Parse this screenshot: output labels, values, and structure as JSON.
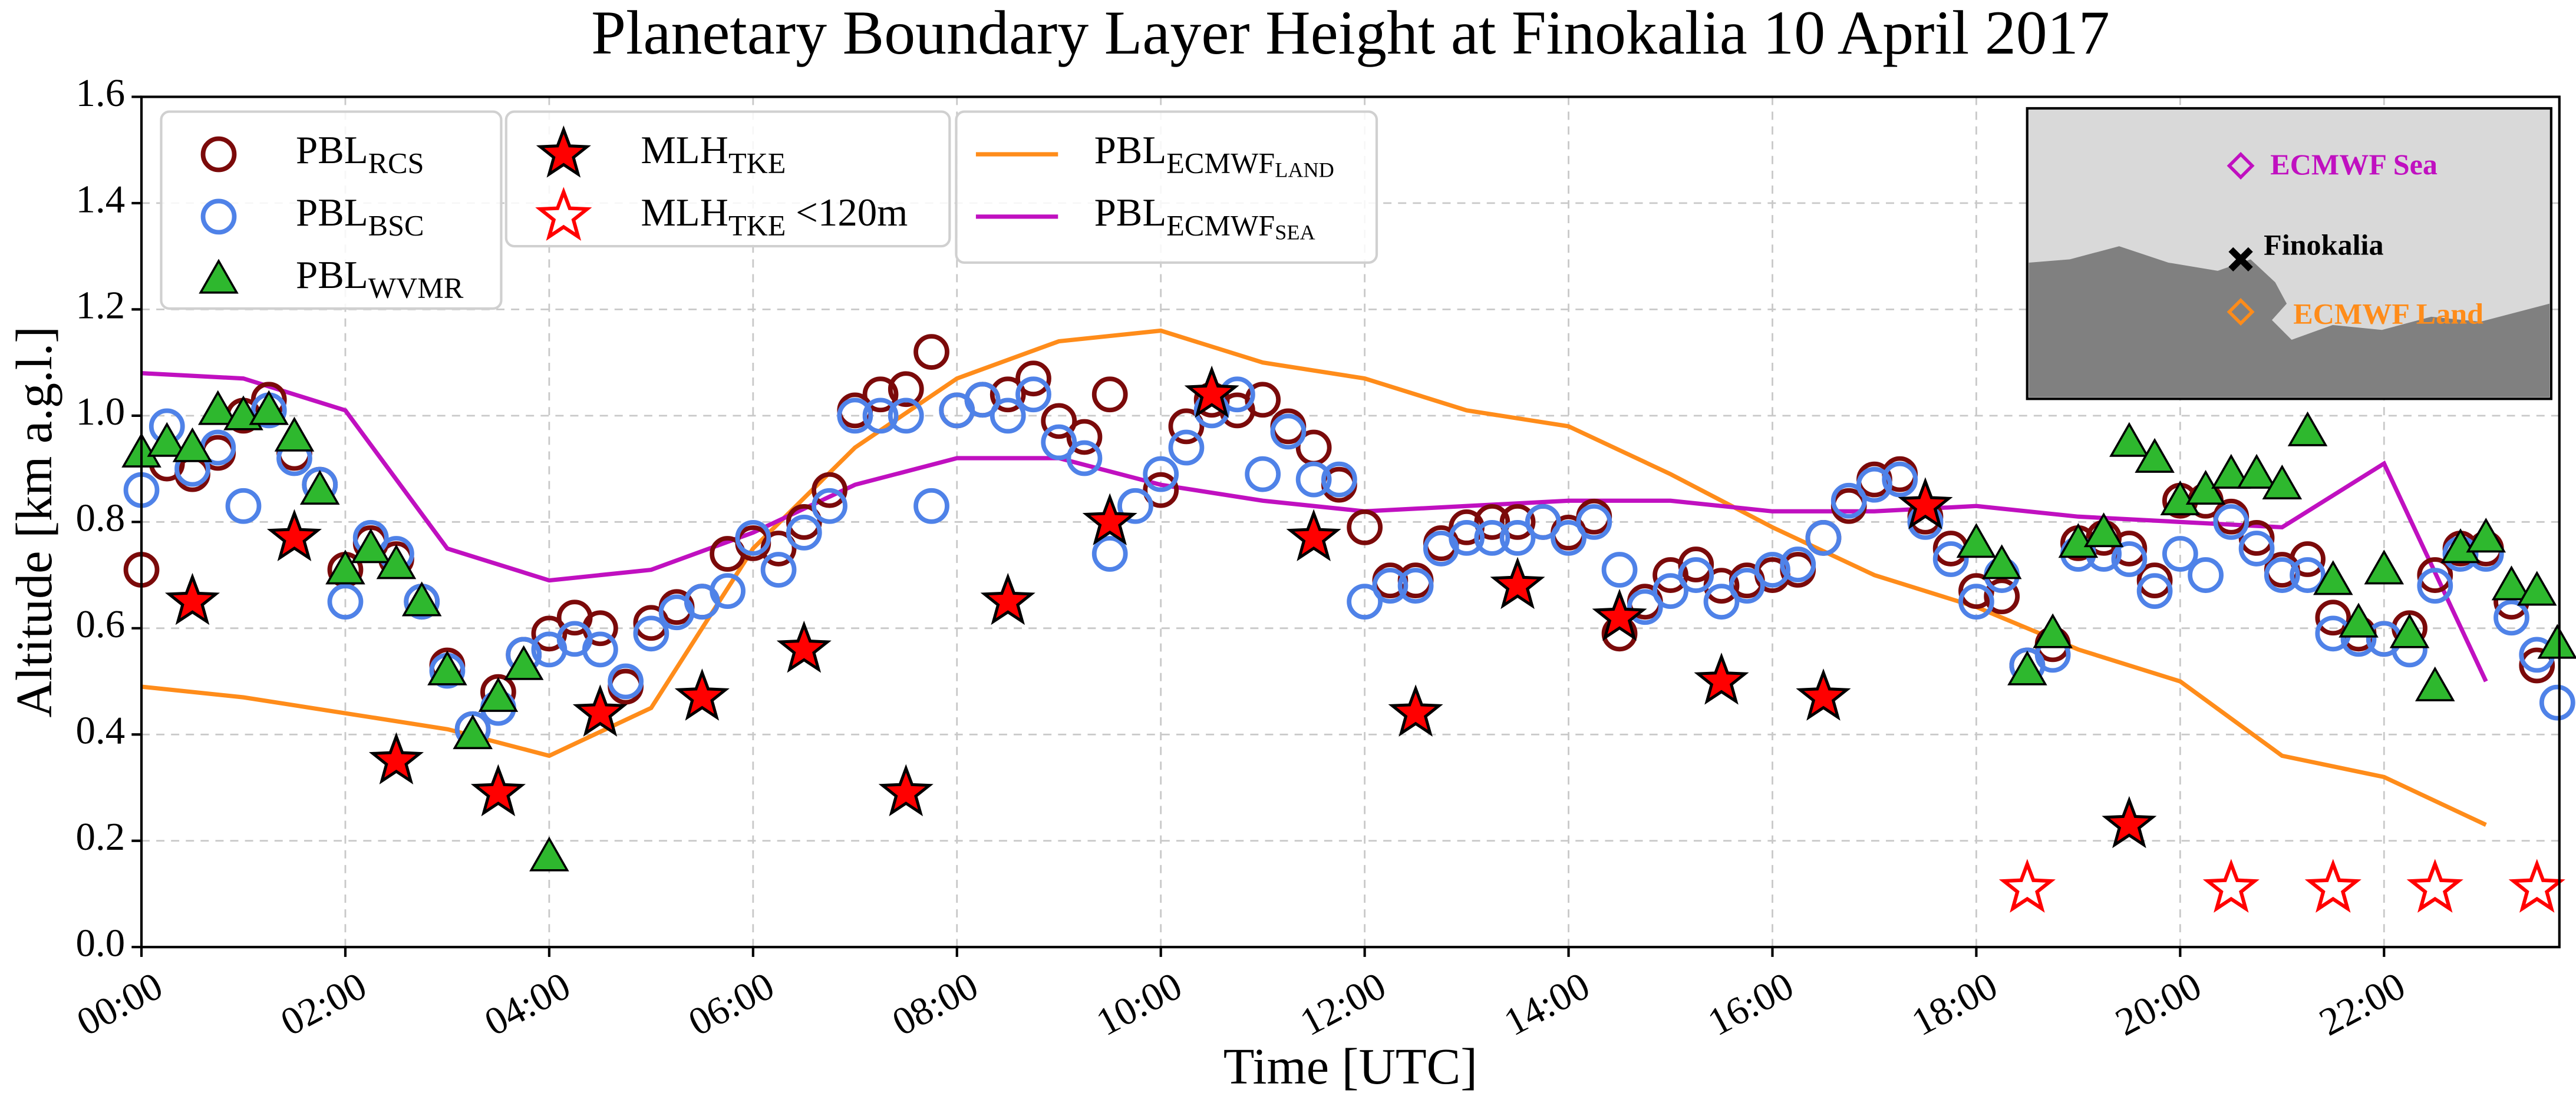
{
  "chart_data": {
    "type": "scatter",
    "title": "Planetary Boundary Layer Height at Finokalia 10 April 2017",
    "x_label": "Time [UTC]",
    "y_label": "Altitude [km a.g.l.]",
    "xlim": [
      0,
      23.72
    ],
    "ylim": [
      0,
      1.6
    ],
    "xticks": [
      {
        "value": 0,
        "label": "00:00"
      },
      {
        "value": 2,
        "label": "02:00"
      },
      {
        "value": 4,
        "label": "04:00"
      },
      {
        "value": 6,
        "label": "06:00"
      },
      {
        "value": 8,
        "label": "08:00"
      },
      {
        "value": 10,
        "label": "10:00"
      },
      {
        "value": 12,
        "label": "12:00"
      },
      {
        "value": 14,
        "label": "14:00"
      },
      {
        "value": 16,
        "label": "16:00"
      },
      {
        "value": 18,
        "label": "18:00"
      },
      {
        "value": 20,
        "label": "20:00"
      },
      {
        "value": 22,
        "label": "22:00"
      }
    ],
    "yticks": [
      {
        "value": 0,
        "label": "0.0"
      },
      0.2,
      0.4,
      0.6,
      0.8,
      {
        "value": 1,
        "label": "1.0"
      },
      1.2,
      1.4,
      1.6
    ],
    "grid": true,
    "series": [
      {
        "name": "PBL",
        "subscript": "RCS",
        "type": "scatter",
        "marker": "circle-open",
        "color": "#7b0a0a",
        "x": [
          0,
          0.25,
          0.5,
          0.75,
          1,
          1.25,
          1.5,
          1.75,
          2,
          2.25,
          2.5,
          2.75,
          3,
          3.25,
          3.5,
          3.75,
          4,
          4.25,
          4.5,
          4.75,
          5,
          5.25,
          5.5,
          5.75,
          6,
          6.25,
          6.5,
          6.75,
          7,
          7.25,
          7.5,
          7.75,
          8,
          8.25,
          8.5,
          8.75,
          9,
          9.25,
          9.5,
          10,
          10.25,
          10.5,
          10.75,
          11,
          11.25,
          11.5,
          11.75,
          12,
          12.25,
          12.5,
          12.75,
          13,
          13.25,
          13.5,
          13.75,
          14,
          14.25,
          14.5,
          14.75,
          15,
          15.25,
          15.5,
          15.75,
          16,
          16.25,
          16.5,
          16.75,
          17,
          17.25,
          17.5,
          17.75,
          18,
          18.25,
          18.5,
          18.75,
          19,
          19.25,
          19.5,
          19.75,
          20,
          20.25,
          20.5,
          20.75,
          21,
          21.25,
          21.5,
          21.75,
          22,
          22.25,
          22.5,
          22.75,
          23,
          23.25,
          23.5
        ],
        "values": [
          0.71,
          0.91,
          0.89,
          0.93,
          1.0,
          1.03,
          0.93,
          0.87,
          0.71,
          0.76,
          0.73,
          0.65,
          0.53,
          0.41,
          0.48,
          0.55,
          0.59,
          0.62,
          0.6,
          0.49,
          0.61,
          0.64,
          0.65,
          0.74,
          0.76,
          0.75,
          0.8,
          0.86,
          1.01,
          1.04,
          1.05,
          1.12,
          1.01,
          1.03,
          1.04,
          1.07,
          0.99,
          0.96,
          1.04,
          0.86,
          0.98,
          1.03,
          1.01,
          1.03,
          0.98,
          0.94,
          0.87,
          0.79,
          0.69,
          0.69,
          0.76,
          0.79,
          0.8,
          0.8,
          0.8,
          0.78,
          0.81,
          0.59,
          0.65,
          0.7,
          0.72,
          0.68,
          0.69,
          0.7,
          0.71,
          0.77,
          0.83,
          0.88,
          0.89,
          0.81,
          0.75,
          0.67,
          0.66,
          0.53,
          0.57,
          0.76,
          0.77,
          0.75,
          0.69,
          0.84,
          0.84,
          0.81,
          0.77,
          0.71,
          0.73,
          0.62,
          0.59,
          0.58,
          0.6,
          0.7,
          0.75,
          0.75,
          0.65,
          0.53
        ]
      },
      {
        "name": "PBL",
        "subscript": "BSC",
        "type": "scatter",
        "marker": "circle-open",
        "color": "#4f82e8",
        "x": [
          0,
          0.25,
          0.5,
          0.75,
          1,
          1.25,
          1.5,
          1.75,
          2,
          2.25,
          2.5,
          2.75,
          3,
          3.25,
          3.5,
          3.75,
          4,
          4.25,
          4.5,
          4.75,
          5,
          5.25,
          5.5,
          5.75,
          6,
          6.25,
          6.5,
          6.75,
          7,
          7.25,
          7.5,
          7.75,
          8,
          8.25,
          8.5,
          8.75,
          9,
          9.25,
          9.5,
          9.75,
          10,
          10.25,
          10.5,
          10.75,
          11,
          11.25,
          11.5,
          11.75,
          12,
          12.25,
          12.5,
          12.75,
          13,
          13.25,
          13.5,
          13.75,
          14,
          14.25,
          14.5,
          14.75,
          15,
          15.25,
          15.5,
          15.75,
          16,
          16.25,
          16.5,
          16.75,
          17,
          17.25,
          17.5,
          17.75,
          18,
          18.25,
          18.5,
          18.75,
          19,
          19.25,
          19.5,
          19.75,
          20,
          20.25,
          20.5,
          20.75,
          21,
          21.25,
          21.5,
          21.75,
          22,
          22.25,
          22.5,
          22.75,
          23,
          23.25,
          23.5,
          23.7
        ],
        "values": [
          0.86,
          0.98,
          0.9,
          0.94,
          0.83,
          1.01,
          0.92,
          0.87,
          0.65,
          0.77,
          0.74,
          0.65,
          0.52,
          0.41,
          0.45,
          0.55,
          0.56,
          0.58,
          0.56,
          0.5,
          0.59,
          0.63,
          0.65,
          0.67,
          0.77,
          0.71,
          0.78,
          0.83,
          1.0,
          1.0,
          1.0,
          0.83,
          1.01,
          1.03,
          1.0,
          1.04,
          0.95,
          0.92,
          0.74,
          0.83,
          0.89,
          0.94,
          1.01,
          1.04,
          0.89,
          0.97,
          0.88,
          0.88,
          0.65,
          0.68,
          0.68,
          0.75,
          0.77,
          0.77,
          0.77,
          0.8,
          0.77,
          0.8,
          0.71,
          0.64,
          0.67,
          0.7,
          0.65,
          0.68,
          0.71,
          0.72,
          0.77,
          0.84,
          0.87,
          0.88,
          0.8,
          0.73,
          0.65,
          0.7,
          0.53,
          0.55,
          0.74,
          0.74,
          0.73,
          0.67,
          0.74,
          0.7,
          0.8,
          0.75,
          0.7,
          0.7,
          0.59,
          0.58,
          0.58,
          0.56,
          0.68,
          0.74,
          0.74,
          0.62,
          0.55,
          0.46
        ]
      },
      {
        "name": "PBL",
        "subscript": "WVMR",
        "type": "scatter",
        "marker": "triangle",
        "color": "#2eb82e",
        "x": [
          0,
          0.25,
          0.5,
          0.75,
          1,
          1.25,
          1.5,
          1.75,
          2,
          2.25,
          2.5,
          2.75,
          3,
          3.25,
          3.5,
          3.75,
          4,
          18,
          18.25,
          18.5,
          18.75,
          19,
          19.25,
          19.5,
          19.75,
          20,
          20.25,
          20.5,
          20.75,
          21,
          21.25,
          21.5,
          21.75,
          22,
          22.25,
          22.5,
          22.75,
          23,
          23.25,
          23.5,
          23.7
        ],
        "values": [
          0.93,
          0.95,
          0.94,
          1.01,
          1.0,
          1.01,
          0.96,
          0.86,
          0.71,
          0.75,
          0.72,
          0.65,
          0.52,
          0.4,
          0.47,
          0.53,
          0.17,
          0.76,
          0.72,
          0.52,
          0.59,
          0.76,
          0.78,
          0.95,
          0.92,
          0.84,
          0.86,
          0.89,
          0.89,
          0.87,
          0.97,
          0.69,
          0.61,
          0.71,
          0.59,
          0.49,
          0.75,
          0.77,
          0.68,
          0.67,
          0.57
        ]
      },
      {
        "name": "MLH",
        "subscript": "TKE",
        "type": "scatter",
        "marker": "star",
        "color": "#ff0000",
        "x": [
          0.5,
          1.5,
          2.5,
          3.5,
          4.5,
          5.5,
          6.5,
          7.5,
          8.5,
          9.5,
          10.5,
          11.5,
          12.5,
          13.5,
          14.5,
          15.5,
          16.5,
          17.5,
          19.5
        ],
        "values": [
          0.65,
          0.77,
          0.35,
          0.29,
          0.44,
          0.47,
          0.56,
          0.29,
          0.65,
          0.8,
          1.04,
          0.77,
          0.44,
          0.68,
          0.62,
          0.5,
          0.47,
          0.83,
          0.23
        ]
      },
      {
        "name": "MLH",
        "subscript": "TKE",
        "suffix": " <120m",
        "type": "scatter",
        "marker": "star-open",
        "color": "#ff0000",
        "x": [
          18.5,
          20.5,
          21.5,
          22.5,
          23.5
        ],
        "values": [
          0.11,
          0.11,
          0.11,
          0.11,
          0.11
        ]
      },
      {
        "name": "PBL",
        "subscript": "ECMWF",
        "subscript2": "LAND",
        "type": "line",
        "color": "#ff8c1a",
        "x": [
          0,
          1,
          2,
          3,
          4,
          5,
          6,
          7,
          8,
          9,
          10,
          11,
          12,
          13,
          14,
          15,
          16,
          17,
          18,
          19,
          20,
          21,
          22,
          23
        ],
        "values": [
          0.49,
          0.47,
          0.44,
          0.41,
          0.36,
          0.45,
          0.75,
          0.94,
          1.07,
          1.14,
          1.16,
          1.1,
          1.07,
          1.01,
          0.98,
          0.89,
          0.79,
          0.7,
          0.64,
          0.56,
          0.5,
          0.36,
          0.32,
          0.23
        ]
      },
      {
        "name": "PBL",
        "subscript": "ECMWF",
        "subscript2": "SEA",
        "type": "line",
        "color": "#c010c0",
        "x": [
          0,
          1,
          2,
          3,
          4,
          5,
          6,
          7,
          8,
          9,
          10,
          11,
          12,
          13,
          14,
          15,
          16,
          17,
          18,
          19,
          20,
          21,
          22,
          23
        ],
        "values": [
          1.08,
          1.07,
          1.01,
          0.75,
          0.69,
          0.71,
          0.78,
          0.87,
          0.92,
          0.92,
          0.87,
          0.84,
          0.82,
          0.83,
          0.84,
          0.84,
          0.82,
          0.82,
          0.83,
          0.81,
          0.8,
          0.79,
          0.91,
          0.5
        ]
      }
    ],
    "inset": {
      "sea_label": "ECMWF Sea",
      "site_label": "Finokalia",
      "land_label": "ECMWF Land"
    }
  }
}
